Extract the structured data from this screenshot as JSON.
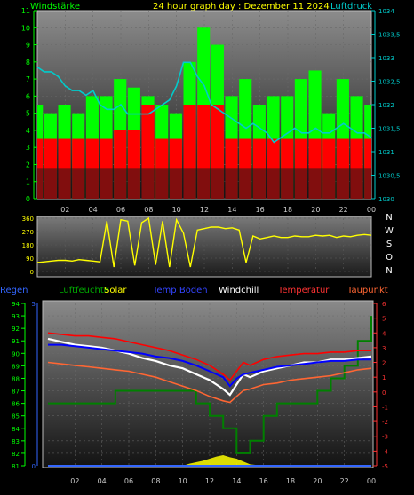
{
  "header": {
    "left_label": "Windstärke",
    "title": "24 hour graph day : Dezember 11 2024",
    "right_label": "Luftdruck"
  },
  "colors": {
    "wind": "#00ff00",
    "gust": "#ff0000",
    "pressure": "#00cccc",
    "direction": "#ffff00",
    "humidity": "#008000",
    "solar": "#ffff00",
    "ground_temp": "#0000ff",
    "windchill": "#ffffff",
    "temperature": "#ff0000",
    "dewpoint": "#ff6633",
    "rain": "#3366ff"
  },
  "legend": {
    "rain": "Regen",
    "humidity": "Luftfeuchte",
    "solar": "Solar",
    "ground_temp": "Temp Boden",
    "windchill": "Windchill",
    "temperature": "Temperatur",
    "dewpoint": "Taupunkt"
  },
  "chart_data": [
    {
      "type": "bar",
      "id": "wind",
      "left_axis": {
        "min": 0,
        "max": 11,
        "ticks": [
          "0",
          "1",
          "2",
          "3",
          "4",
          "5",
          "6",
          "7",
          "8",
          "9",
          "10",
          "11"
        ]
      },
      "right_axis": {
        "min": 1030,
        "max": 1034,
        "ticks": [
          "1030",
          "1030,5",
          "1031",
          "1031,5",
          "1032",
          "1032,5",
          "1033",
          "1033,5",
          "1034"
        ]
      },
      "x_ticks": [
        "02",
        "04",
        "06",
        "08",
        "10",
        "12",
        "14",
        "16",
        "18",
        "20",
        "22",
        "00"
      ],
      "x_range": [
        0,
        24
      ],
      "series": [
        {
          "name": "Windstärke",
          "x": [
            0,
            1,
            2,
            3,
            4,
            5,
            6,
            7,
            8,
            9,
            10,
            11,
            12,
            13,
            14,
            15,
            16,
            17,
            18,
            19,
            20,
            21,
            22,
            23,
            24
          ],
          "values": [
            5.5,
            5,
            5.5,
            5,
            6,
            6,
            7,
            6.5,
            6,
            5.5,
            5,
            8,
            10,
            9,
            6,
            7,
            5.5,
            6,
            6,
            7,
            7.5,
            5,
            7,
            6,
            5.5
          ]
        },
        {
          "name": "Böen",
          "x": [
            0,
            1,
            2,
            3,
            4,
            5,
            6,
            7,
            8,
            9,
            10,
            11,
            12,
            13,
            14,
            15,
            16,
            17,
            18,
            19,
            20,
            21,
            22,
            23,
            24
          ],
          "values": [
            3.5,
            3.5,
            3.5,
            3.5,
            3.5,
            3.5,
            4,
            4,
            5.5,
            3.5,
            3.5,
            5.5,
            5.5,
            5.5,
            3.5,
            3.5,
            3.5,
            3.5,
            3.5,
            3.5,
            3.5,
            3.5,
            3.5,
            3.5,
            3.5
          ]
        },
        {
          "name": "Luftdruck",
          "x": [
            0,
            0.5,
            1,
            1.5,
            2,
            2.5,
            3,
            3.5,
            4,
            4.5,
            5,
            5.5,
            6,
            6.5,
            7,
            7.5,
            8,
            8.5,
            9,
            9.5,
            10,
            10.5,
            11,
            11.5,
            12,
            12.5,
            13,
            13.5,
            14,
            14.5,
            15,
            15.5,
            16,
            16.5,
            17,
            17.5,
            18,
            18.5,
            19,
            19.5,
            20,
            20.5,
            21,
            21.5,
            22,
            22.5,
            23,
            23.5,
            24
          ],
          "values": [
            1032.8,
            1032.7,
            1032.7,
            1032.6,
            1032.4,
            1032.3,
            1032.3,
            1032.2,
            1032.3,
            1032.0,
            1031.9,
            1031.9,
            1032.0,
            1031.8,
            1031.8,
            1031.8,
            1031.8,
            1031.9,
            1032.0,
            1032.1,
            1032.4,
            1032.9,
            1032.9,
            1032.6,
            1032.4,
            1032.0,
            1031.9,
            1031.8,
            1031.7,
            1031.6,
            1031.5,
            1031.6,
            1031.5,
            1031.4,
            1031.2,
            1031.3,
            1031.4,
            1031.5,
            1031.4,
            1031.4,
            1031.5,
            1031.4,
            1031.4,
            1031.5,
            1031.6,
            1031.5,
            1031.4,
            1031.4,
            1031.3
          ]
        }
      ]
    },
    {
      "type": "line",
      "id": "direction",
      "left_axis": {
        "min": 0,
        "max": 360,
        "ticks": [
          "0",
          "90",
          "180",
          "270",
          "360"
        ]
      },
      "right_labels": [
        "N",
        "W",
        "S",
        "O",
        "N"
      ],
      "x_range": [
        0,
        24
      ],
      "series": [
        {
          "name": "Windrichtung",
          "x": [
            0,
            0.5,
            1,
            1.5,
            2,
            2.5,
            3,
            3.5,
            4,
            4.5,
            5,
            5.5,
            6,
            6.5,
            7,
            7.5,
            8,
            8.5,
            9,
            9.5,
            10,
            10.5,
            11,
            11.5,
            12,
            12.5,
            13,
            13.5,
            14,
            14.5,
            15,
            15.5,
            16,
            16.5,
            17,
            17.5,
            18,
            18.5,
            19,
            19.5,
            20,
            20.5,
            21,
            21.5,
            22,
            22.5,
            23,
            23.5,
            24
          ],
          "values": [
            60,
            65,
            70,
            75,
            75,
            70,
            80,
            75,
            70,
            65,
            340,
            30,
            350,
            340,
            40,
            330,
            360,
            45,
            340,
            30,
            350,
            260,
            30,
            280,
            290,
            300,
            300,
            290,
            295,
            280,
            60,
            240,
            220,
            230,
            240,
            230,
            230,
            240,
            235,
            235,
            245,
            240,
            245,
            230,
            240,
            235,
            245,
            250,
            245
          ]
        }
      ]
    },
    {
      "type": "line",
      "id": "temperature",
      "left_axis": {
        "min": 81,
        "max": 94,
        "ticks": [
          "81",
          "82",
          "83",
          "84",
          "85",
          "86",
          "87",
          "88",
          "89",
          "90",
          "91",
          "92",
          "93",
          "94"
        ]
      },
      "rain_axis": {
        "min": 0,
        "max": 5,
        "ticks": [
          "0",
          "5"
        ]
      },
      "right_axis": {
        "min": -5,
        "max": 6,
        "ticks": [
          "-5",
          "-4",
          "-3",
          "-2",
          "-1",
          "0",
          "1",
          "2",
          "3",
          "4",
          "5",
          "6"
        ]
      },
      "x_ticks": [
        "02",
        "04",
        "06",
        "08",
        "10",
        "12",
        "14",
        "16",
        "18",
        "20",
        "22",
        "00"
      ],
      "x_range": [
        0,
        24
      ],
      "series": [
        {
          "name": "Temperatur",
          "x": [
            0,
            1,
            2,
            3,
            4,
            5,
            6,
            7,
            8,
            9,
            10,
            11,
            12,
            13,
            13.5,
            14,
            14.5,
            15,
            16,
            17,
            18,
            19,
            20,
            21,
            22,
            23,
            24
          ],
          "values": [
            4.0,
            3.9,
            3.8,
            3.8,
            3.7,
            3.6,
            3.4,
            3.2,
            3.0,
            2.8,
            2.5,
            2.2,
            1.8,
            1.2,
            0.8,
            1.4,
            2.0,
            1.8,
            2.2,
            2.4,
            2.5,
            2.6,
            2.6,
            2.7,
            2.7,
            2.8,
            2.8
          ]
        },
        {
          "name": "Temp Boden",
          "x": [
            0,
            1,
            2,
            3,
            4,
            5,
            6,
            7,
            8,
            9,
            10,
            11,
            12,
            13,
            13.5,
            14,
            14.5,
            15,
            16,
            17,
            18,
            19,
            20,
            21,
            22,
            23,
            24
          ],
          "values": [
            3.2,
            3.2,
            3.1,
            3.0,
            2.9,
            2.8,
            2.7,
            2.6,
            2.4,
            2.3,
            2.1,
            1.8,
            1.4,
            1.0,
            0.4,
            0.9,
            1.2,
            1.3,
            1.5,
            1.7,
            1.8,
            1.9,
            2.0,
            2.1,
            2.1,
            2.2,
            2.2
          ]
        },
        {
          "name": "Windchill",
          "x": [
            0,
            1,
            2,
            3,
            4,
            5,
            6,
            7,
            8,
            9,
            10,
            11,
            12,
            13,
            13.5,
            14,
            14.5,
            15,
            16,
            17,
            18,
            19,
            20,
            21,
            22,
            23,
            24
          ],
          "values": [
            3.6,
            3.4,
            3.2,
            3.1,
            3.0,
            2.8,
            2.6,
            2.3,
            2.1,
            1.8,
            1.6,
            1.2,
            0.8,
            0.2,
            -0.2,
            0.5,
            1.2,
            1.0,
            1.4,
            1.6,
            1.8,
            2.0,
            2.0,
            2.2,
            2.2,
            2.3,
            2.4
          ]
        },
        {
          "name": "Taupunkt",
          "x": [
            0,
            1,
            2,
            3,
            4,
            5,
            6,
            7,
            8,
            9,
            10,
            11,
            12,
            13,
            13.5,
            14,
            14.5,
            15,
            16,
            17,
            18,
            19,
            20,
            21,
            22,
            23,
            24
          ],
          "values": [
            2.0,
            1.9,
            1.8,
            1.7,
            1.6,
            1.5,
            1.4,
            1.2,
            1.0,
            0.7,
            0.4,
            0.1,
            -0.3,
            -0.6,
            -0.7,
            -0.3,
            0.1,
            0.2,
            0.5,
            0.6,
            0.8,
            0.9,
            1.0,
            1.1,
            1.3,
            1.5,
            1.6
          ]
        },
        {
          "name": "Luftfeuchte",
          "x": [
            0,
            1,
            2,
            3,
            4,
            5,
            6,
            7,
            8,
            9,
            10,
            11,
            12,
            13,
            14,
            15,
            16,
            17,
            18,
            19,
            20,
            21,
            22,
            23,
            24
          ],
          "values": [
            86,
            86,
            86,
            86,
            86,
            87,
            87,
            87,
            87,
            87,
            87,
            86,
            85,
            84,
            82,
            83,
            85,
            86,
            86,
            86,
            87,
            88,
            89,
            91,
            93
          ]
        },
        {
          "name": "Solar",
          "x": [
            0,
            9,
            10,
            10.5,
            11,
            11.5,
            12,
            12.5,
            13,
            13.5,
            14,
            14.5,
            15,
            16,
            24
          ],
          "values": [
            0,
            0,
            0,
            0.03,
            0.05,
            0.07,
            0.1,
            0.13,
            0.15,
            0.12,
            0.1,
            0.06,
            0.02,
            0,
            0
          ]
        },
        {
          "name": "Regen",
          "x": [
            0,
            24
          ],
          "values": [
            0,
            0
          ]
        }
      ]
    }
  ]
}
